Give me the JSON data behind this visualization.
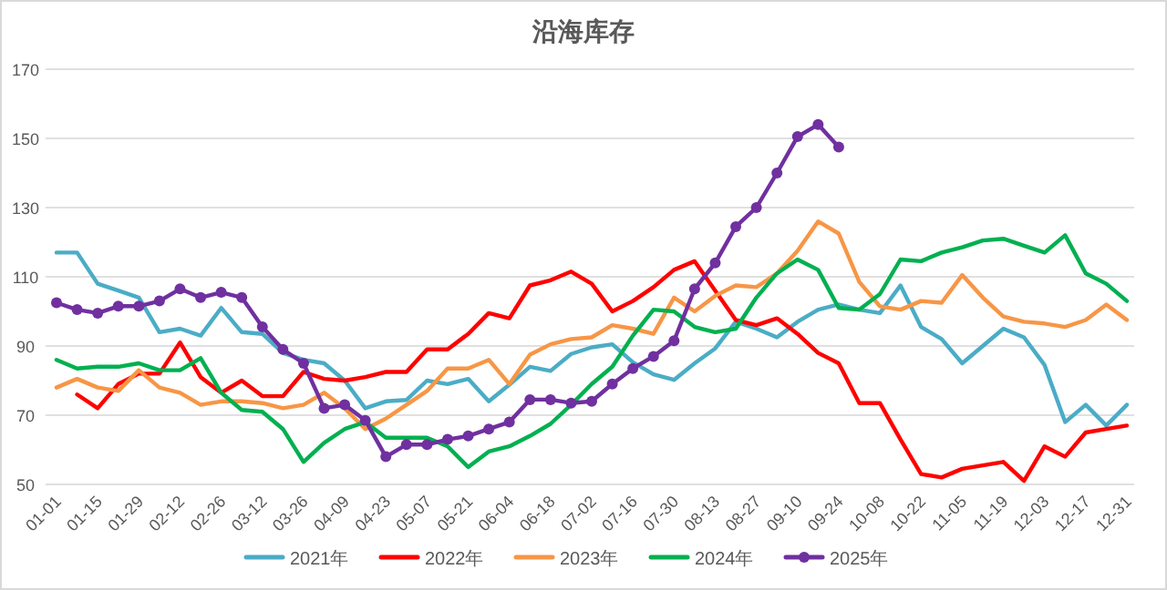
{
  "chart_data": {
    "type": "line",
    "title": "沿海库存",
    "categories": [
      "01-01",
      null,
      "01-15",
      null,
      "01-29",
      null,
      "02-12",
      null,
      "02-26",
      null,
      "03-12",
      null,
      "03-26",
      null,
      "04-09",
      null,
      "04-23",
      null,
      "05-07",
      null,
      "05-21",
      null,
      "06-04",
      null,
      "06-18",
      null,
      "07-02",
      null,
      "07-16",
      null,
      "07-30",
      null,
      "08-13",
      null,
      "08-27",
      null,
      "09-10",
      null,
      "09-24",
      null,
      "10-08",
      null,
      "10-22",
      null,
      "11-05",
      null,
      "11-19",
      null,
      "12-03",
      null,
      "12-17",
      null,
      "12-31"
    ],
    "series": [
      {
        "name": "2021年",
        "color": "#4bacc6",
        "values": [
          117,
          117,
          108,
          106,
          104,
          94,
          95,
          93,
          101,
          94,
          93.5,
          88,
          86,
          85,
          80,
          72,
          74,
          74.4,
          80,
          79,
          80.5,
          74,
          78.8,
          84,
          82.8,
          87.7,
          89.6,
          90.5,
          85.3,
          81.8,
          80.2,
          85,
          89.3,
          97,
          95,
          92.5,
          97,
          100.5,
          102,
          100.5,
          99.5,
          107.5,
          95.5,
          92,
          85,
          90,
          95,
          92.5,
          84.5,
          68,
          73,
          67,
          73
        ]
      },
      {
        "name": "2022年",
        "color": "#ff0000",
        "values": [
          null,
          76,
          72,
          79,
          82,
          82,
          91,
          81,
          76.5,
          80,
          75.5,
          75.5,
          82.5,
          80.5,
          80,
          81,
          82.5,
          82.5,
          89,
          89,
          93.5,
          99.5,
          98,
          107.5,
          109,
          111.5,
          108,
          100,
          103,
          107,
          112,
          114.5,
          106,
          97.5,
          96,
          98,
          93.5,
          88,
          85,
          73.5,
          73.5,
          63,
          53,
          52,
          54.5,
          55.5,
          56.5,
          51,
          61,
          58,
          65,
          66,
          67
        ]
      },
      {
        "name": "2023年",
        "color": "#f79646",
        "values": [
          78,
          80.5,
          78,
          77,
          83,
          78,
          76.5,
          73,
          74,
          74,
          73.5,
          72,
          73,
          76.5,
          72,
          66,
          69,
          73,
          77,
          83.5,
          83.5,
          86,
          79,
          87.5,
          90.5,
          92,
          92.5,
          96,
          95,
          93.5,
          104,
          100,
          104.5,
          107.5,
          107,
          111,
          117.5,
          126,
          122.5,
          108.5,
          101.5,
          100.5,
          103,
          102.5,
          110.5,
          104,
          98.5,
          97,
          96.5,
          95.5,
          97.5,
          102,
          97.5
        ]
      },
      {
        "name": "2024年",
        "color": "#00b050",
        "values": [
          86,
          83.5,
          84,
          84,
          85,
          83,
          83,
          86.5,
          76.5,
          71.5,
          71,
          66,
          56.5,
          62,
          66,
          68,
          63.5,
          63.5,
          63.5,
          61,
          55,
          59.5,
          61,
          64,
          67.5,
          73,
          79,
          84,
          93,
          100.5,
          100,
          95.5,
          94,
          95,
          104,
          111,
          115,
          112,
          101,
          100.5,
          105,
          115,
          114.5,
          117,
          118.5,
          120.5,
          121,
          119,
          117,
          122,
          111,
          108,
          103
        ]
      },
      {
        "name": "2025年",
        "color": "#7030a0",
        "marker": "circle",
        "values": [
          102.5,
          100.5,
          99.5,
          101.5,
          101.5,
          103,
          106.5,
          104,
          105.5,
          104,
          95.5,
          89,
          85,
          72,
          73,
          68.5,
          58,
          61.5,
          61.5,
          63,
          64,
          66,
          68,
          74.5,
          74.5,
          73.5,
          74,
          79,
          83.5,
          87,
          91.5,
          106.5,
          114,
          124.5,
          130,
          140,
          150.5,
          154,
          147.5,
          null,
          null,
          null,
          null,
          null,
          null,
          null,
          null,
          null,
          null,
          null,
          null,
          null,
          null
        ]
      }
    ],
    "ylim": [
      50,
      170
    ],
    "yticks": [
      50,
      70,
      90,
      110,
      130,
      150,
      170
    ],
    "grid": "y",
    "legend": "bottom"
  }
}
